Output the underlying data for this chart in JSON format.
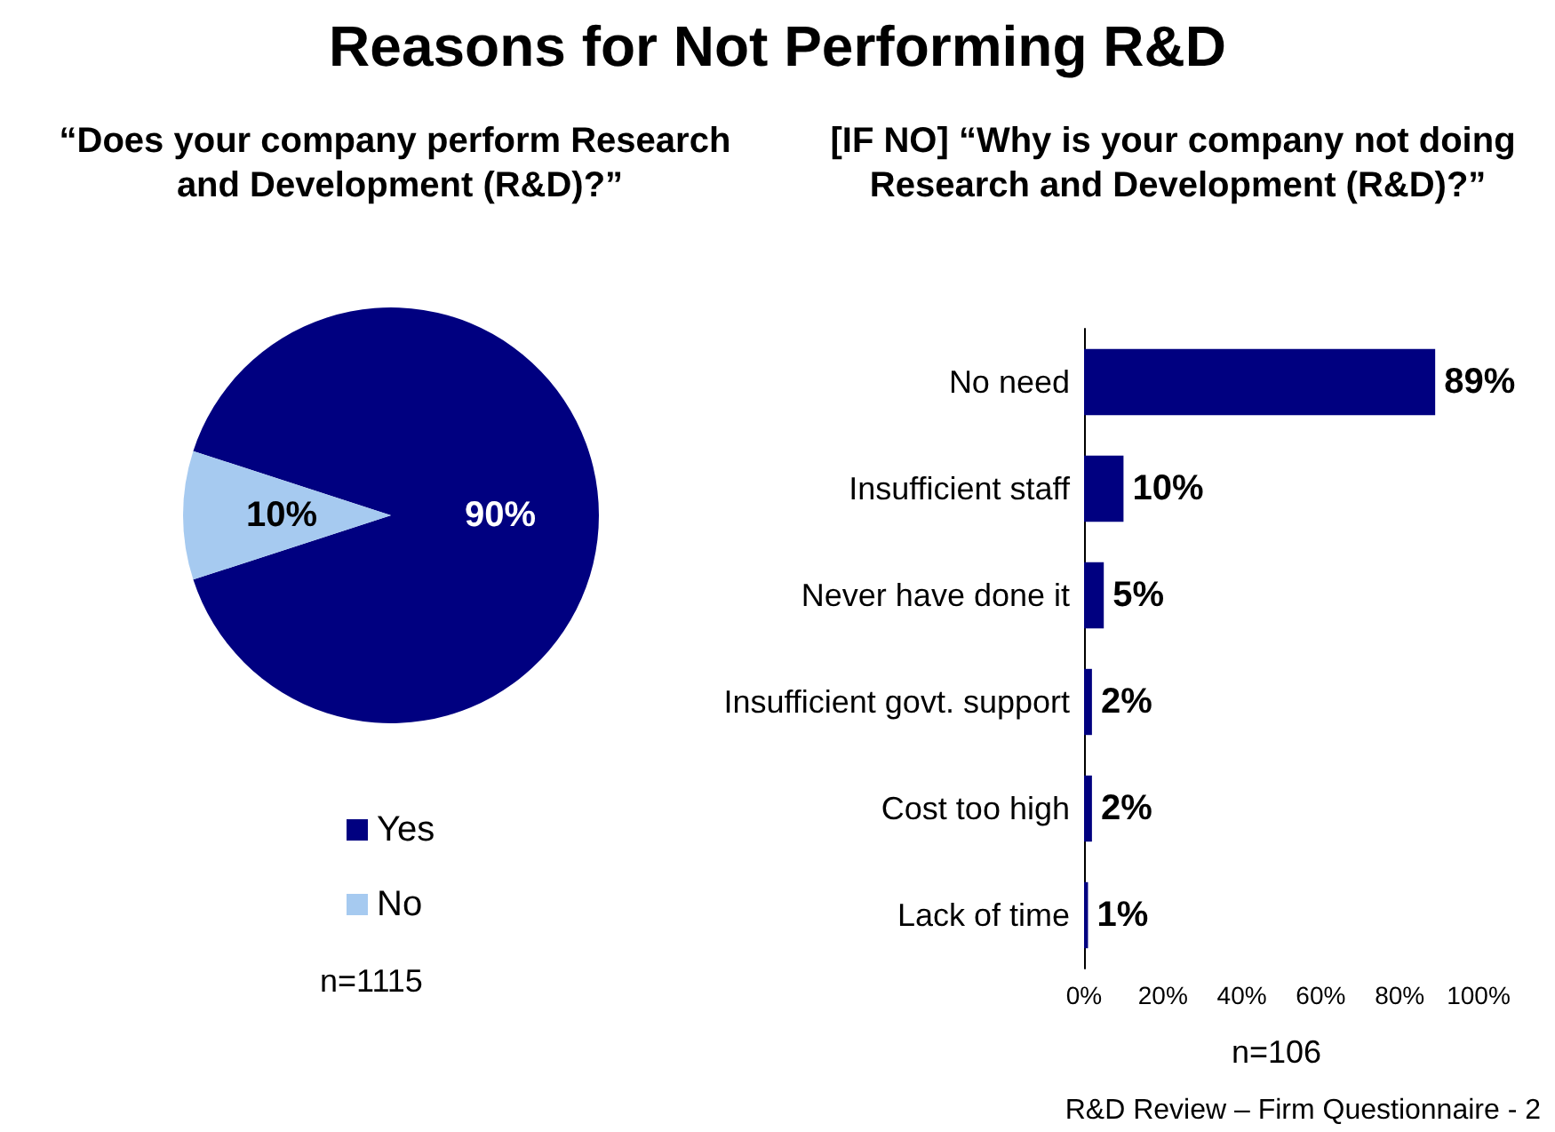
{
  "chart_data": [
    {
      "type": "pie",
      "title": "Reasons for Not Performing R&D",
      "subtitle": "“Does your company perform Research and Development (R&D)?”",
      "categories": [
        "Yes",
        "No"
      ],
      "values": [
        90,
        10
      ],
      "value_labels": [
        "90%",
        "10%"
      ],
      "colors": [
        "#000080",
        "#a6caf0"
      ],
      "legend": "bottom",
      "annotations": [
        "n=1115"
      ]
    },
    {
      "type": "bar",
      "orientation": "horizontal",
      "title": "[IF NO] “Why is your company not doing Research and Development (R&D)?”",
      "categories": [
        "No need",
        "Insufficient staff",
        "Never have done it",
        "Insufficient govt. support",
        "Cost too high",
        "Lack of time"
      ],
      "values": [
        89,
        10,
        5,
        2,
        2,
        1
      ],
      "value_labels": [
        "89%",
        "10%",
        "5%",
        "2%",
        "2%",
        "1%"
      ],
      "color": "#000080",
      "xlim": [
        0,
        100
      ],
      "xticks": [
        {
          "value": 0,
          "label": "0%"
        },
        {
          "value": 20,
          "label": "20%"
        },
        {
          "value": 40,
          "label": "40%"
        },
        {
          "value": 60,
          "label": "60%"
        },
        {
          "value": 80,
          "label": "80%"
        },
        {
          "value": 100,
          "label": "100%"
        }
      ],
      "grid": false,
      "annotations": [
        "n=106",
        "R&D Review – Firm Questionnaire - 2"
      ]
    }
  ]
}
